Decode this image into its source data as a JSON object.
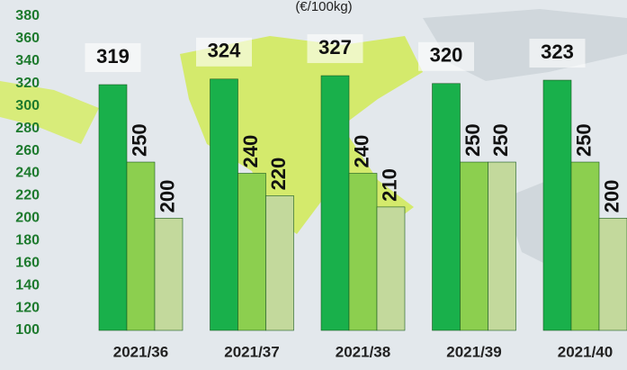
{
  "chart_data": {
    "type": "bar",
    "subtitle": "(€/100kg)",
    "categories": [
      "2021/36",
      "2021/37",
      "2021/38",
      "2021/39",
      "2021/40"
    ],
    "series": [
      {
        "color": "#19b04b",
        "values": [
          319,
          324,
          327,
          320,
          323
        ]
      },
      {
        "color": "#8ccf4f",
        "values": [
          250,
          240,
          240,
          250,
          250
        ]
      },
      {
        "color": "#c3d99c",
        "values": [
          200,
          220,
          210,
          250,
          200
        ]
      }
    ],
    "ylim": [
      100,
      380
    ],
    "yticks": [
      100,
      120,
      140,
      160,
      180,
      200,
      220,
      240,
      260,
      280,
      300,
      320,
      340,
      360,
      380
    ],
    "grid": false
  }
}
